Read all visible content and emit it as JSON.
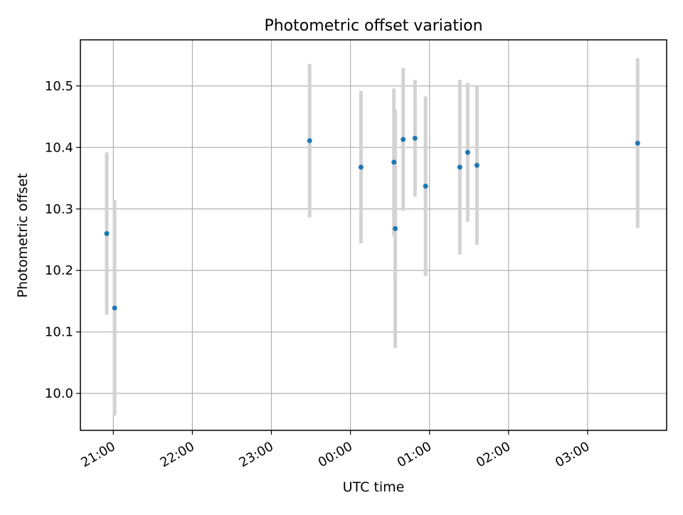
{
  "chart_data": {
    "type": "scatter",
    "title": "Photometric offset variation",
    "xlabel": "UTC time",
    "ylabel": "Photometric offset",
    "xlim": [
      "20:35",
      "04:00"
    ],
    "ylim": [
      9.94,
      10.575
    ],
    "x_ticks": [
      "21:00",
      "22:00",
      "23:00",
      "00:00",
      "01:00",
      "02:00",
      "03:00"
    ],
    "y_ticks": [
      "10.0",
      "10.1",
      "10.2",
      "10.3",
      "10.4",
      "10.5"
    ],
    "grid": true,
    "colors": {
      "point": "#1f77b4",
      "errorbar": "#d3d3d3",
      "grid": "#b0b0b0",
      "frame": "#000000"
    },
    "series": [
      {
        "points": [
          {
            "x": "20:55",
            "y": 10.26,
            "err": 0.132
          },
          {
            "x": "21:01",
            "y": 10.139,
            "err": 0.175
          },
          {
            "x": "23:29",
            "y": 10.411,
            "err": 0.125
          },
          {
            "x": "00:08",
            "y": 10.368,
            "err": 0.124
          },
          {
            "x": "00:33",
            "y": 10.376,
            "err": 0.12
          },
          {
            "x": "00:34",
            "y": 10.268,
            "err": 0.194
          },
          {
            "x": "00:40",
            "y": 10.413,
            "err": 0.116
          },
          {
            "x": "00:49",
            "y": 10.415,
            "err": 0.095
          },
          {
            "x": "00:57",
            "y": 10.337,
            "err": 0.146
          },
          {
            "x": "01:23",
            "y": 10.368,
            "err": 0.142
          },
          {
            "x": "01:29",
            "y": 10.392,
            "err": 0.113
          },
          {
            "x": "01:36",
            "y": 10.371,
            "err": 0.129
          },
          {
            "x": "03:38",
            "y": 10.407,
            "err": 0.138
          }
        ]
      }
    ]
  }
}
